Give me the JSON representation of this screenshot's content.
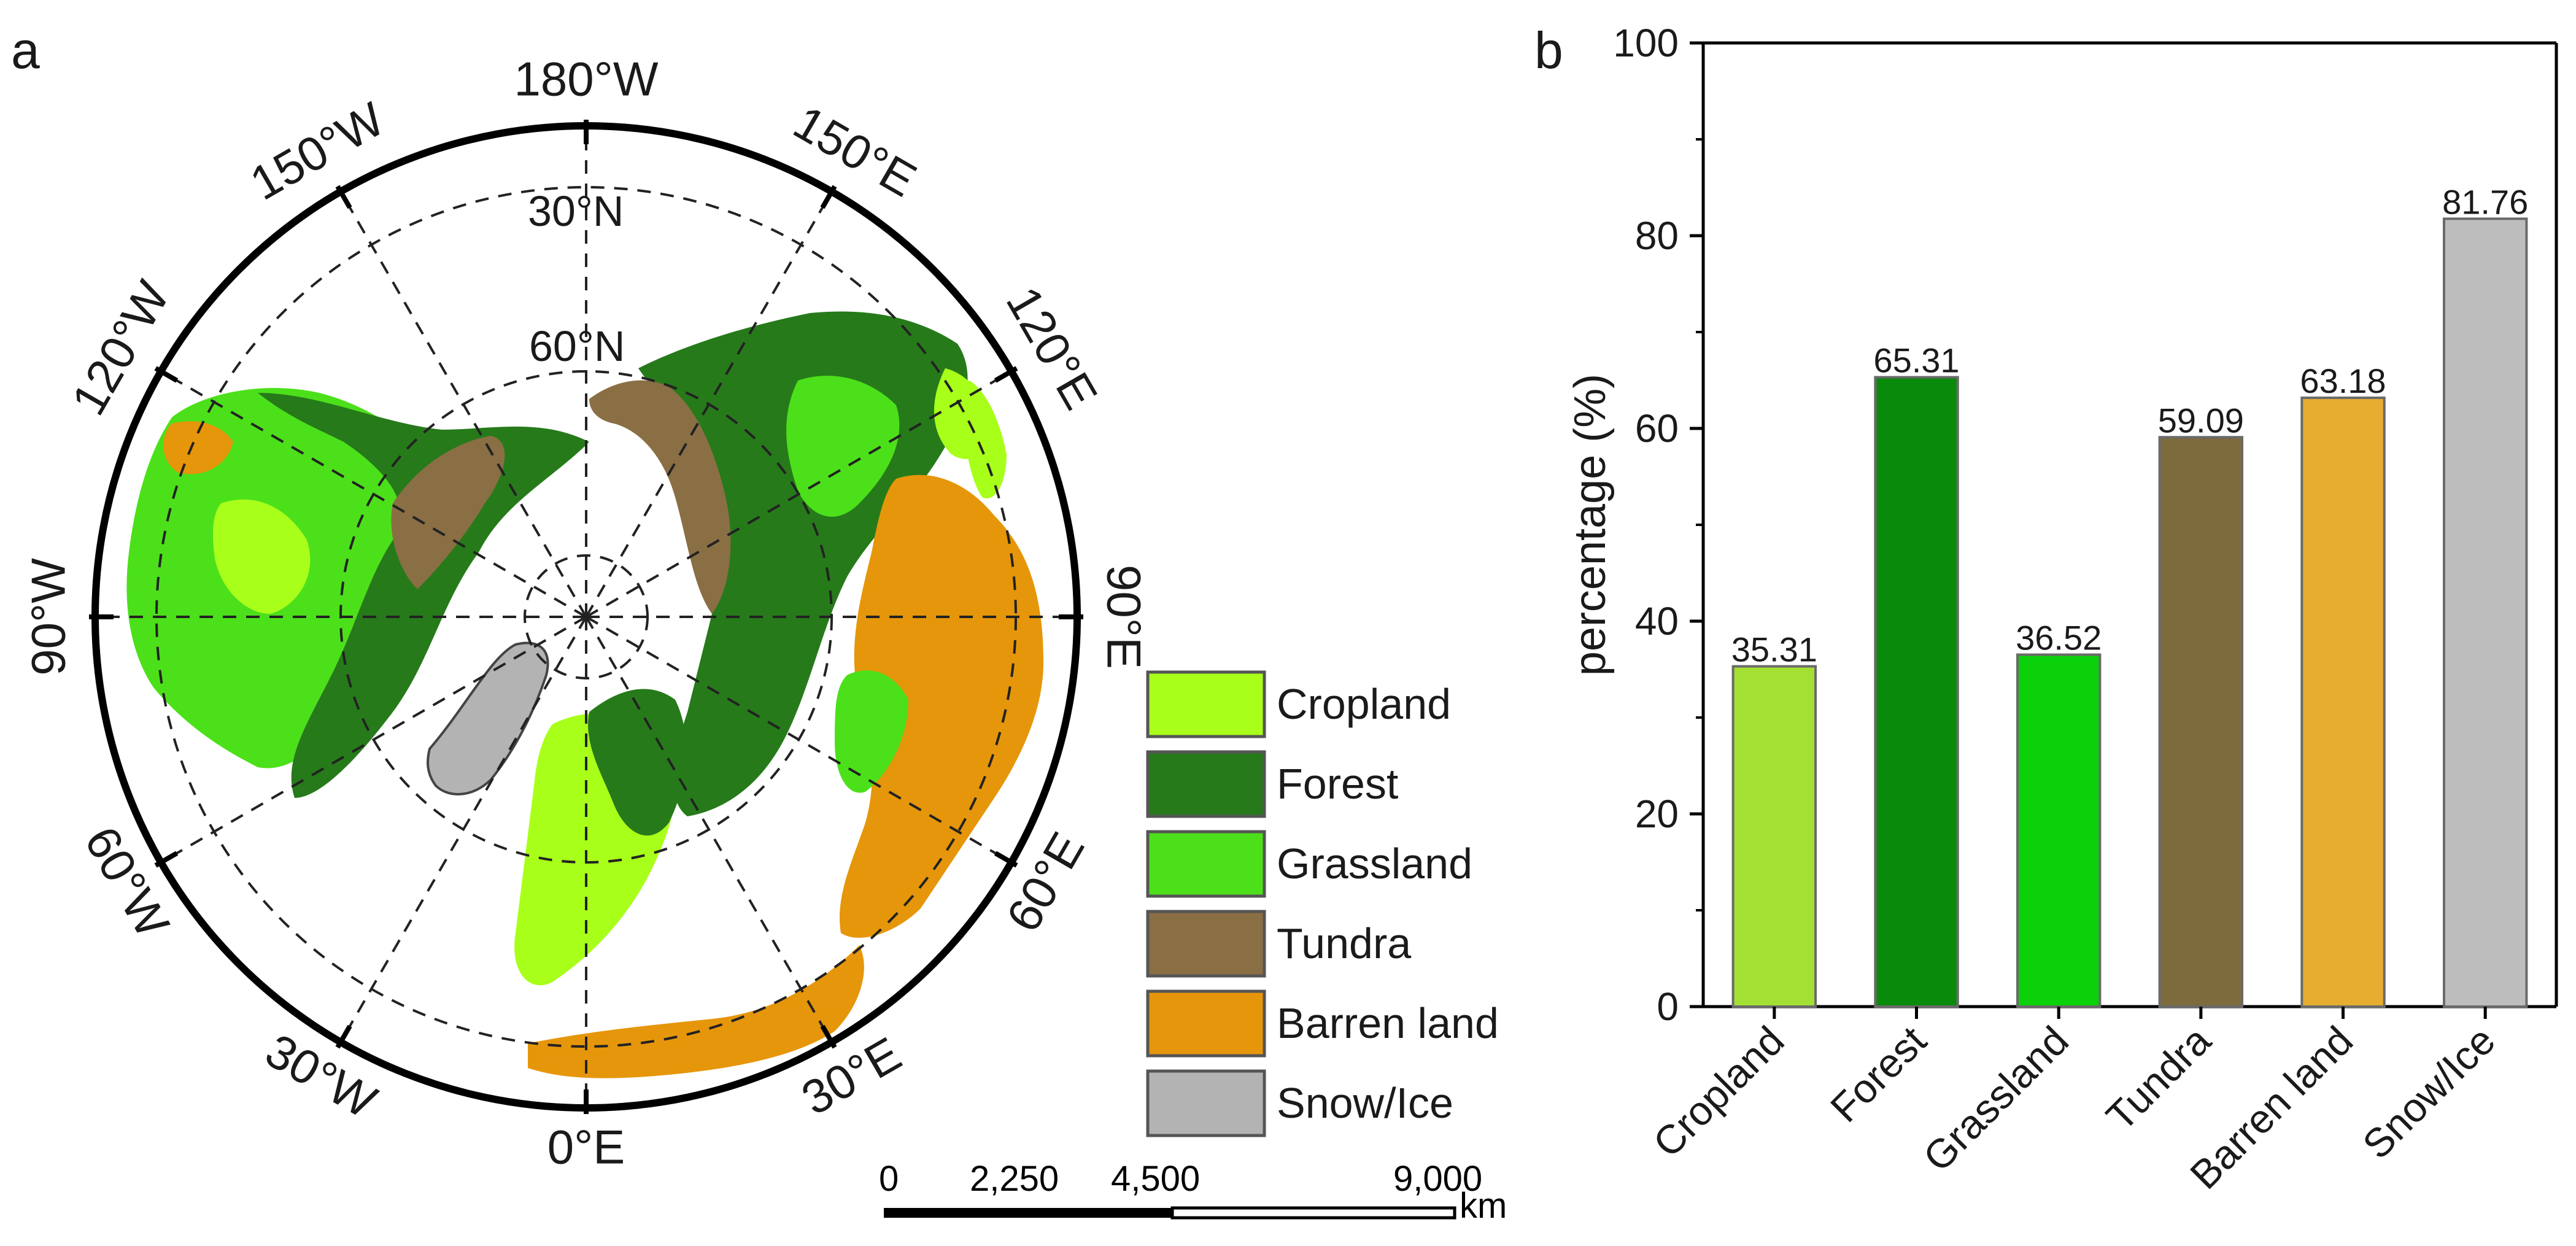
{
  "panels": {
    "a": {
      "label": "a"
    },
    "b": {
      "label": "b"
    }
  },
  "map": {
    "lon_labels": [
      {
        "text": "180°W",
        "angle": 0
      },
      {
        "text": "150°E",
        "angle": 30
      },
      {
        "text": "120°E",
        "angle": 60
      },
      {
        "text": "90°E",
        "angle": 90
      },
      {
        "text": "60°E",
        "angle": 120
      },
      {
        "text": "30°E",
        "angle": 150
      },
      {
        "text": "0°E",
        "angle": 180
      },
      {
        "text": "30°W",
        "angle": 210
      },
      {
        "text": "60°W",
        "angle": 240
      },
      {
        "text": "90°W",
        "angle": 270
      },
      {
        "text": "120°W",
        "angle": 300
      },
      {
        "text": "150°W",
        "angle": 330
      }
    ],
    "lat_labels": [
      "30°N",
      "60°N"
    ],
    "legend": [
      {
        "label": "Cropland",
        "color": "#a8ff1a"
      },
      {
        "label": "Forest",
        "color": "#267a1a"
      },
      {
        "label": "Grassland",
        "color": "#4ce01a"
      },
      {
        "label": "Tundra",
        "color": "#8a6e44"
      },
      {
        "label": "Barren land",
        "color": "#e6960a"
      },
      {
        "label": "Snow/Ice",
        "color": "#b3b3b3"
      }
    ],
    "scale_bar": {
      "ticks": [
        "0",
        "2,250",
        "4,500",
        "9,000"
      ],
      "unit": "km"
    }
  },
  "chart_data": {
    "type": "bar",
    "categories": [
      "Cropland",
      "Forest",
      "Grassland",
      "Tundra",
      "Barren land",
      "Snow/Ice"
    ],
    "values": [
      35.31,
      65.31,
      36.52,
      59.09,
      63.18,
      81.76
    ],
    "value_labels": [
      "35.31",
      "65.31",
      "36.52",
      "59.09",
      "63.18",
      "81.76"
    ],
    "colors": [
      "#a4e034",
      "#0a8a0a",
      "#0ad10a",
      "#7d6b3e",
      "#e6ad30",
      "#bdbdbd"
    ],
    "title": "",
    "xlabel": "",
    "ylabel": "percentage (%)",
    "ylim": [
      0,
      100
    ],
    "yticks": [
      0,
      20,
      40,
      60,
      80,
      100
    ],
    "grid": false
  }
}
